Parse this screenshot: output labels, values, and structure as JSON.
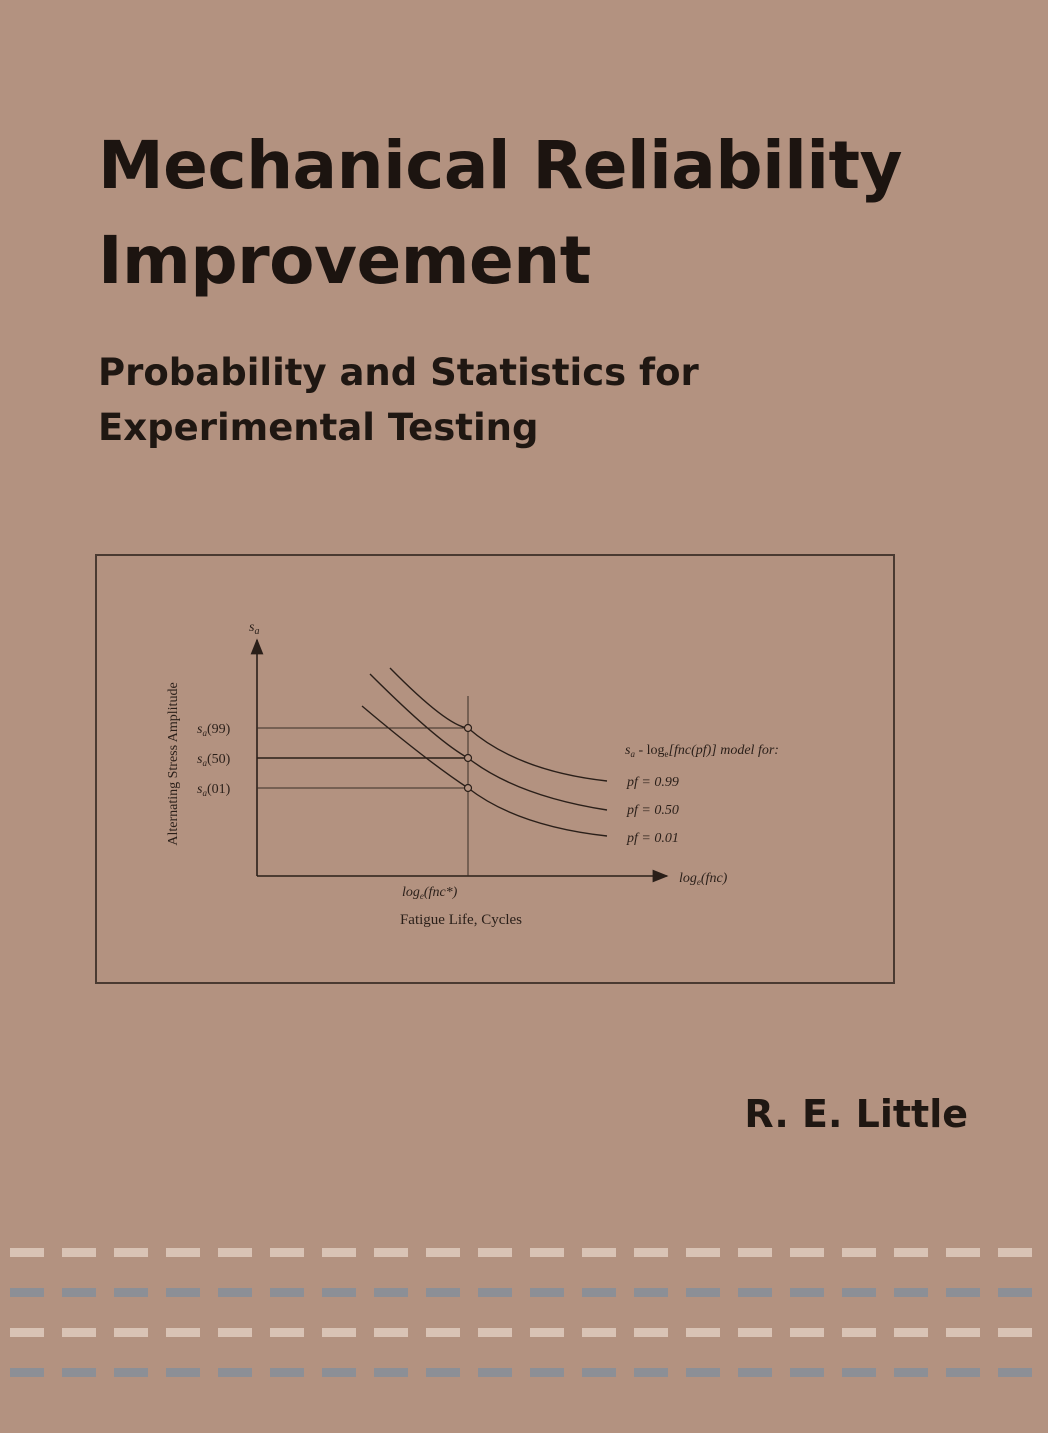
{
  "cover": {
    "title_line1": "Mechanical Reliability",
    "title_line2": "Improvement",
    "subtitle_line1": "Probability and Statistics for",
    "subtitle_line2": "Experimental Testing",
    "author": "R. E. Little"
  },
  "figure": {
    "y_axis_symbol": "s",
    "y_axis_symbol_sub": "a",
    "y_axis_title": "Alternating Stress Amplitude",
    "x_axis_end_label": "log",
    "x_axis_end_sub": "e",
    "x_axis_end_arg": "(fnc)",
    "x_tick_label": "log",
    "x_tick_sub": "e",
    "x_tick_arg": "(fnc*)",
    "x_axis_title": "Fatigue Life, Cycles",
    "y_levels": [
      {
        "label_sym": "s",
        "label_sub": "a",
        "label_arg": "(99)"
      },
      {
        "label_sym": "s",
        "label_sub": "a",
        "label_arg": "(50)"
      },
      {
        "label_sym": "s",
        "label_sub": "a",
        "label_arg": "(01)"
      }
    ],
    "legend_heading_pre": "s",
    "legend_heading_sub": "a",
    "legend_heading_mid": " - log",
    "legend_heading_sub2": "e",
    "legend_heading_post": "[fnc(pf)] model for:",
    "curves": [
      {
        "label": "pf = 0.99"
      },
      {
        "label": "pf = 0.50"
      },
      {
        "label": "pf = 0.01"
      }
    ]
  },
  "decoration": {
    "dash_rows": [
      {
        "color": "#d9c3b5"
      },
      {
        "color": "#8c8f96"
      },
      {
        "color": "#d9c3b5"
      },
      {
        "color": "#8c8f96"
      }
    ]
  }
}
